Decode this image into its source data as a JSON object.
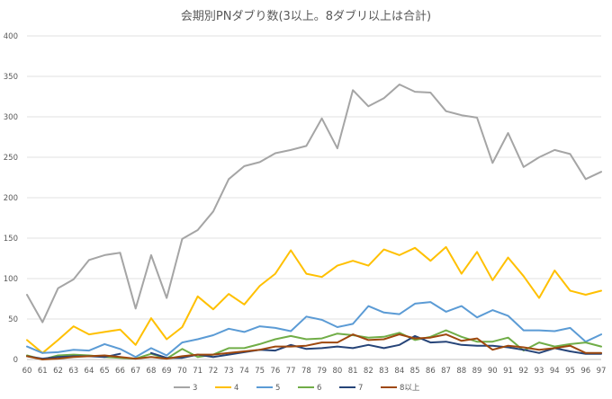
{
  "chart_data": {
    "type": "line",
    "title": "会期別PNダブり数(3以上。8ダブリ以上は合計)",
    "xlabel": "",
    "ylabel": "",
    "ylim": [
      0,
      400
    ],
    "yticks": [
      0,
      50,
      100,
      150,
      200,
      250,
      300,
      350,
      400
    ],
    "grid": true,
    "legend_position": "bottom",
    "categories": [
      "60",
      "61",
      "62",
      "63",
      "64",
      "65",
      "66",
      "67",
      "68",
      "69",
      "70",
      "71",
      "72",
      "73",
      "74",
      "75",
      "76",
      "77",
      "78",
      "79",
      "80",
      "81",
      "82",
      "83",
      "84",
      "85",
      "86",
      "87",
      "88",
      "89",
      "90",
      "91",
      "92",
      "93",
      "94",
      "95",
      "96",
      "97"
    ],
    "series": [
      {
        "name": "3",
        "color": "#a5a5a5",
        "values": [
          80,
          46,
          88,
          99,
          123,
          129,
          132,
          63,
          129,
          76,
          149,
          160,
          183,
          223,
          239,
          244,
          255,
          259,
          264,
          298,
          261,
          333,
          313,
          323,
          340,
          331,
          330,
          307,
          302,
          299,
          243,
          280,
          238,
          250,
          259,
          254,
          223,
          232
        ]
      },
      {
        "name": "4",
        "color": "#ffc000",
        "values": [
          24,
          8,
          24,
          41,
          31,
          34,
          37,
          18,
          51,
          25,
          40,
          78,
          62,
          81,
          68,
          91,
          106,
          135,
          106,
          102,
          116,
          122,
          116,
          136,
          129,
          138,
          122,
          139,
          106,
          133,
          98,
          126,
          103,
          76,
          110,
          85,
          80,
          85
        ]
      },
      {
        "name": "5",
        "color": "#5b9bd5",
        "values": [
          16,
          8,
          9,
          12,
          11,
          19,
          13,
          3,
          14,
          5,
          21,
          25,
          30,
          38,
          34,
          41,
          39,
          35,
          53,
          49,
          40,
          44,
          66,
          58,
          56,
          69,
          71,
          59,
          66,
          52,
          61,
          54,
          36,
          36,
          35,
          39,
          22,
          31
        ]
      },
      {
        "name": "6",
        "color": "#70ad47",
        "values": [
          5,
          0,
          5,
          6,
          5,
          3,
          2,
          1,
          7,
          1,
          13,
          3,
          6,
          14,
          14,
          19,
          25,
          29,
          25,
          26,
          32,
          30,
          27,
          28,
          33,
          24,
          28,
          36,
          28,
          22,
          22,
          27,
          11,
          21,
          16,
          19,
          21,
          16
        ]
      },
      {
        "name": "7",
        "color": "#264478",
        "values": [
          4,
          1,
          3,
          4,
          4,
          3,
          7,
          null,
          8,
          2,
          2,
          6,
          3,
          6,
          9,
          12,
          11,
          18,
          13,
          14,
          16,
          14,
          18,
          14,
          18,
          29,
          21,
          22,
          18,
          17,
          17,
          15,
          12,
          8,
          14,
          10,
          7,
          7
        ]
      },
      {
        "name": "8以上",
        "color": "#9e480e",
        "values": [
          4,
          0,
          1,
          3,
          4,
          5,
          3,
          1,
          3,
          1,
          4,
          6,
          6,
          8,
          10,
          12,
          16,
          16,
          17,
          21,
          21,
          31,
          24,
          25,
          31,
          26,
          27,
          31,
          23,
          26,
          12,
          17,
          15,
          12,
          14,
          17,
          8,
          8
        ]
      }
    ]
  }
}
